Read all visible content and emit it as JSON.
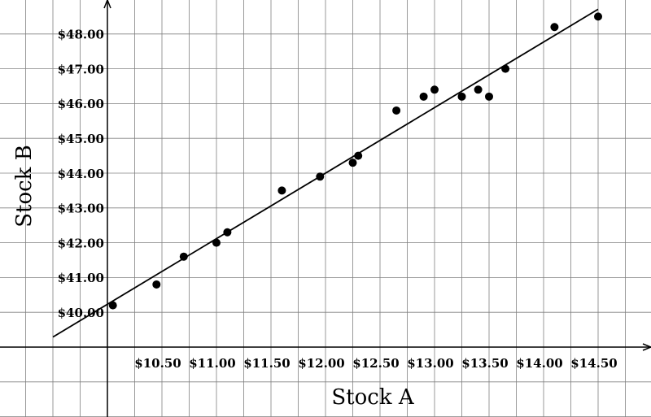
{
  "chart_data": {
    "type": "scatter",
    "xlabel": "Stock A",
    "ylabel": "Stock B",
    "xlim": [
      9.5,
      14.5
    ],
    "ylim": [
      38.5,
      48.5
    ],
    "x_ticks": [
      "$10.50",
      "$11.00",
      "$11.50",
      "$12.00",
      "$12.50",
      "$13.00",
      "$13.50",
      "$14.00",
      "$14.50"
    ],
    "y_ticks": [
      "$40.00",
      "$41.00",
      "$42.00",
      "$43.00",
      "$44.00",
      "$45.00",
      "$46.00",
      "$47.00",
      "$48.00"
    ],
    "points": [
      {
        "x": 10.05,
        "y": 40.2
      },
      {
        "x": 10.45,
        "y": 40.8
      },
      {
        "x": 10.7,
        "y": 41.6
      },
      {
        "x": 11.0,
        "y": 42.0
      },
      {
        "x": 11.1,
        "y": 42.3
      },
      {
        "x": 11.6,
        "y": 43.5
      },
      {
        "x": 11.95,
        "y": 43.9
      },
      {
        "x": 12.25,
        "y": 44.3
      },
      {
        "x": 12.3,
        "y": 44.5
      },
      {
        "x": 12.65,
        "y": 45.8
      },
      {
        "x": 12.9,
        "y": 46.2
      },
      {
        "x": 13.0,
        "y": 46.4
      },
      {
        "x": 13.25,
        "y": 46.2
      },
      {
        "x": 13.4,
        "y": 46.4
      },
      {
        "x": 13.5,
        "y": 46.2
      },
      {
        "x": 13.65,
        "y": 47.0
      },
      {
        "x": 14.1,
        "y": 48.2
      },
      {
        "x": 14.5,
        "y": 48.5
      }
    ],
    "trendline": {
      "x": [
        9.5,
        14.5
      ],
      "y": [
        39.29,
        48.71
      ]
    },
    "grid": true,
    "colors": {
      "point": "#000000",
      "line": "#000000",
      "grid": "#808080",
      "axis": "#000000"
    }
  }
}
